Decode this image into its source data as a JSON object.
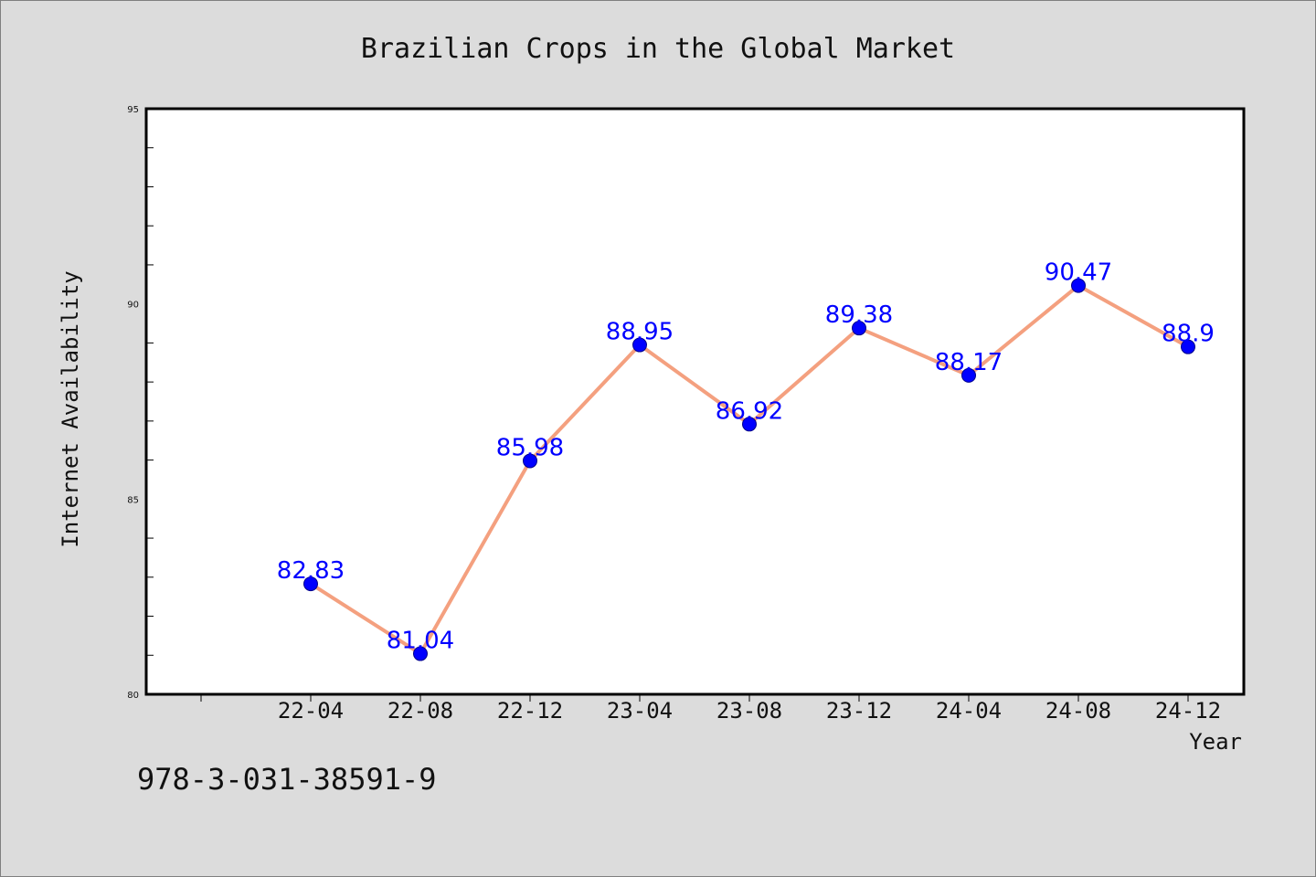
{
  "chart_data": {
    "type": "line",
    "title": "Brazilian Crops in the Global Market",
    "xlabel": "Year",
    "ylabel": "Internet Availability",
    "categories": [
      "22-04",
      "22-08",
      "22-12",
      "23-04",
      "23-08",
      "23-12",
      "24-04",
      "24-08",
      "24-12"
    ],
    "values": [
      82.83,
      81.04,
      85.98,
      88.95,
      86.92,
      89.38,
      88.17,
      90.47,
      88.9
    ],
    "data_labels": [
      "82.83",
      "81.04",
      "85.98",
      "88.95",
      "86.92",
      "89.38",
      "88.17",
      "90.47",
      "88.9"
    ],
    "ylim": [
      80,
      95
    ],
    "yticks": [
      80,
      85,
      90,
      95
    ],
    "line_color": "#f4a07f",
    "marker_color": "#0000ff",
    "label_color": "#0000ff",
    "grid": false,
    "legend": "none"
  },
  "footer": {
    "isbn": "978-3-031-38591-9"
  }
}
